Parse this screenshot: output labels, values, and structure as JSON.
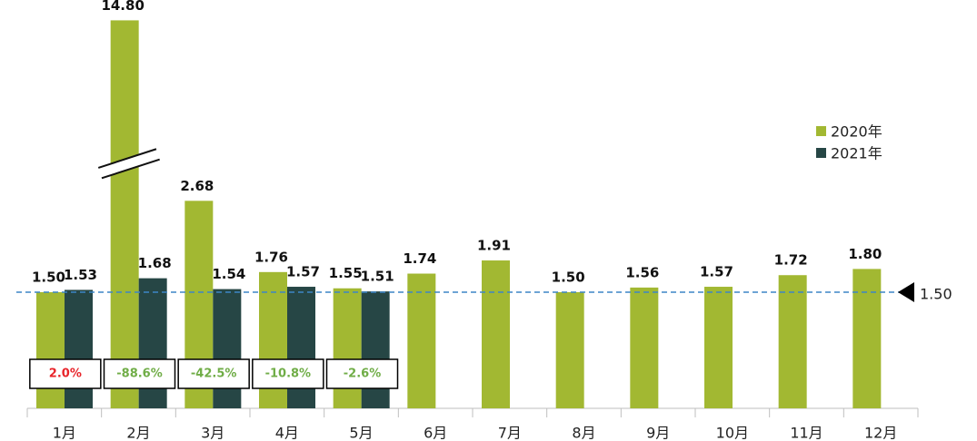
{
  "chart_data": {
    "type": "bar",
    "categories": [
      "1月",
      "2月",
      "3月",
      "4月",
      "5月",
      "6月",
      "7月",
      "8月",
      "9月",
      "10月",
      "11月",
      "12月"
    ],
    "series": [
      {
        "name": "2020年",
        "color": "#a2b832",
        "values": [
          1.5,
          14.8,
          2.68,
          1.76,
          1.55,
          1.74,
          1.91,
          1.5,
          1.56,
          1.57,
          1.72,
          1.8
        ],
        "value_labels": [
          "1.50",
          "14.80",
          "2.68",
          "1.76",
          "1.55",
          "1.74",
          "1.91",
          "1.50",
          "1.56",
          "1.57",
          "1.72",
          "1.80"
        ]
      },
      {
        "name": "2021年",
        "color": "#264645",
        "values": [
          1.53,
          1.68,
          1.54,
          1.57,
          1.51,
          null,
          null,
          null,
          null,
          null,
          null,
          null
        ],
        "value_labels": [
          "1.53",
          "1.68",
          "1.54",
          "1.57",
          "1.51",
          null,
          null,
          null,
          null,
          null,
          null,
          null
        ]
      }
    ],
    "ylim": [
      0,
      15
    ],
    "y_break": [
      3,
      13
    ],
    "reference_line": {
      "value": 1.5,
      "label": "1.50",
      "color": "#3d85c6"
    },
    "change_labels": [
      "2.0%",
      "-88.6%",
      "-42.5%",
      "-10.8%",
      "-2.6%"
    ],
    "change_colors": [
      "#e8242a",
      "#70ad47",
      "#70ad47",
      "#70ad47",
      "#70ad47"
    ],
    "legend": "right"
  }
}
